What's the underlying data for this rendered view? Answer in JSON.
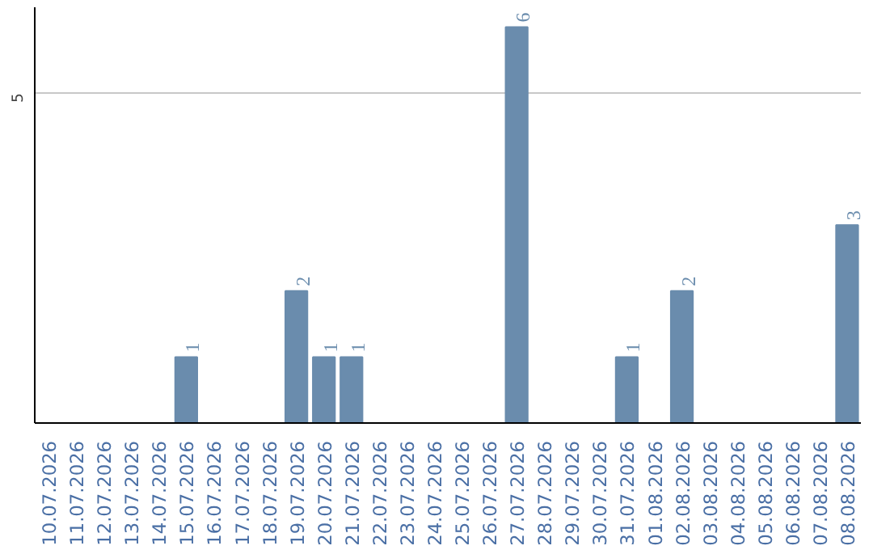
{
  "chart_data": {
    "type": "bar",
    "categories": [
      "10.07.2026",
      "11.07.2026",
      "12.07.2026",
      "13.07.2026",
      "14.07.2026",
      "15.07.2026",
      "16.07.2026",
      "17.07.2026",
      "18.07.2026",
      "19.07.2026",
      "20.07.2026",
      "21.07.2026",
      "22.07.2026",
      "23.07.2026",
      "24.07.2026",
      "25.07.2026",
      "26.07.2026",
      "27.07.2026",
      "28.07.2026",
      "29.07.2026",
      "30.07.2026",
      "31.07.2026",
      "01.08.2026",
      "02.08.2026",
      "03.08.2026",
      "04.08.2026",
      "05.08.2026",
      "06.08.2026",
      "07.08.2026",
      "08.08.2026"
    ],
    "values": [
      0,
      0,
      0,
      0,
      0,
      1,
      0,
      0,
      0,
      2,
      1,
      1,
      0,
      0,
      0,
      0,
      0,
      6,
      0,
      0,
      0,
      1,
      0,
      2,
      0,
      0,
      0,
      0,
      0,
      3
    ],
    "value_labels": [
      null,
      null,
      null,
      null,
      null,
      "1",
      null,
      null,
      null,
      "2",
      "1",
      "1",
      null,
      null,
      null,
      null,
      null,
      "6",
      null,
      null,
      null,
      "1",
      null,
      "2",
      null,
      null,
      null,
      null,
      null,
      "3"
    ],
    "color": "#6a8cad",
    "ylim": [
      0,
      6.3
    ],
    "yticks": [
      5
    ],
    "grid": "y"
  }
}
